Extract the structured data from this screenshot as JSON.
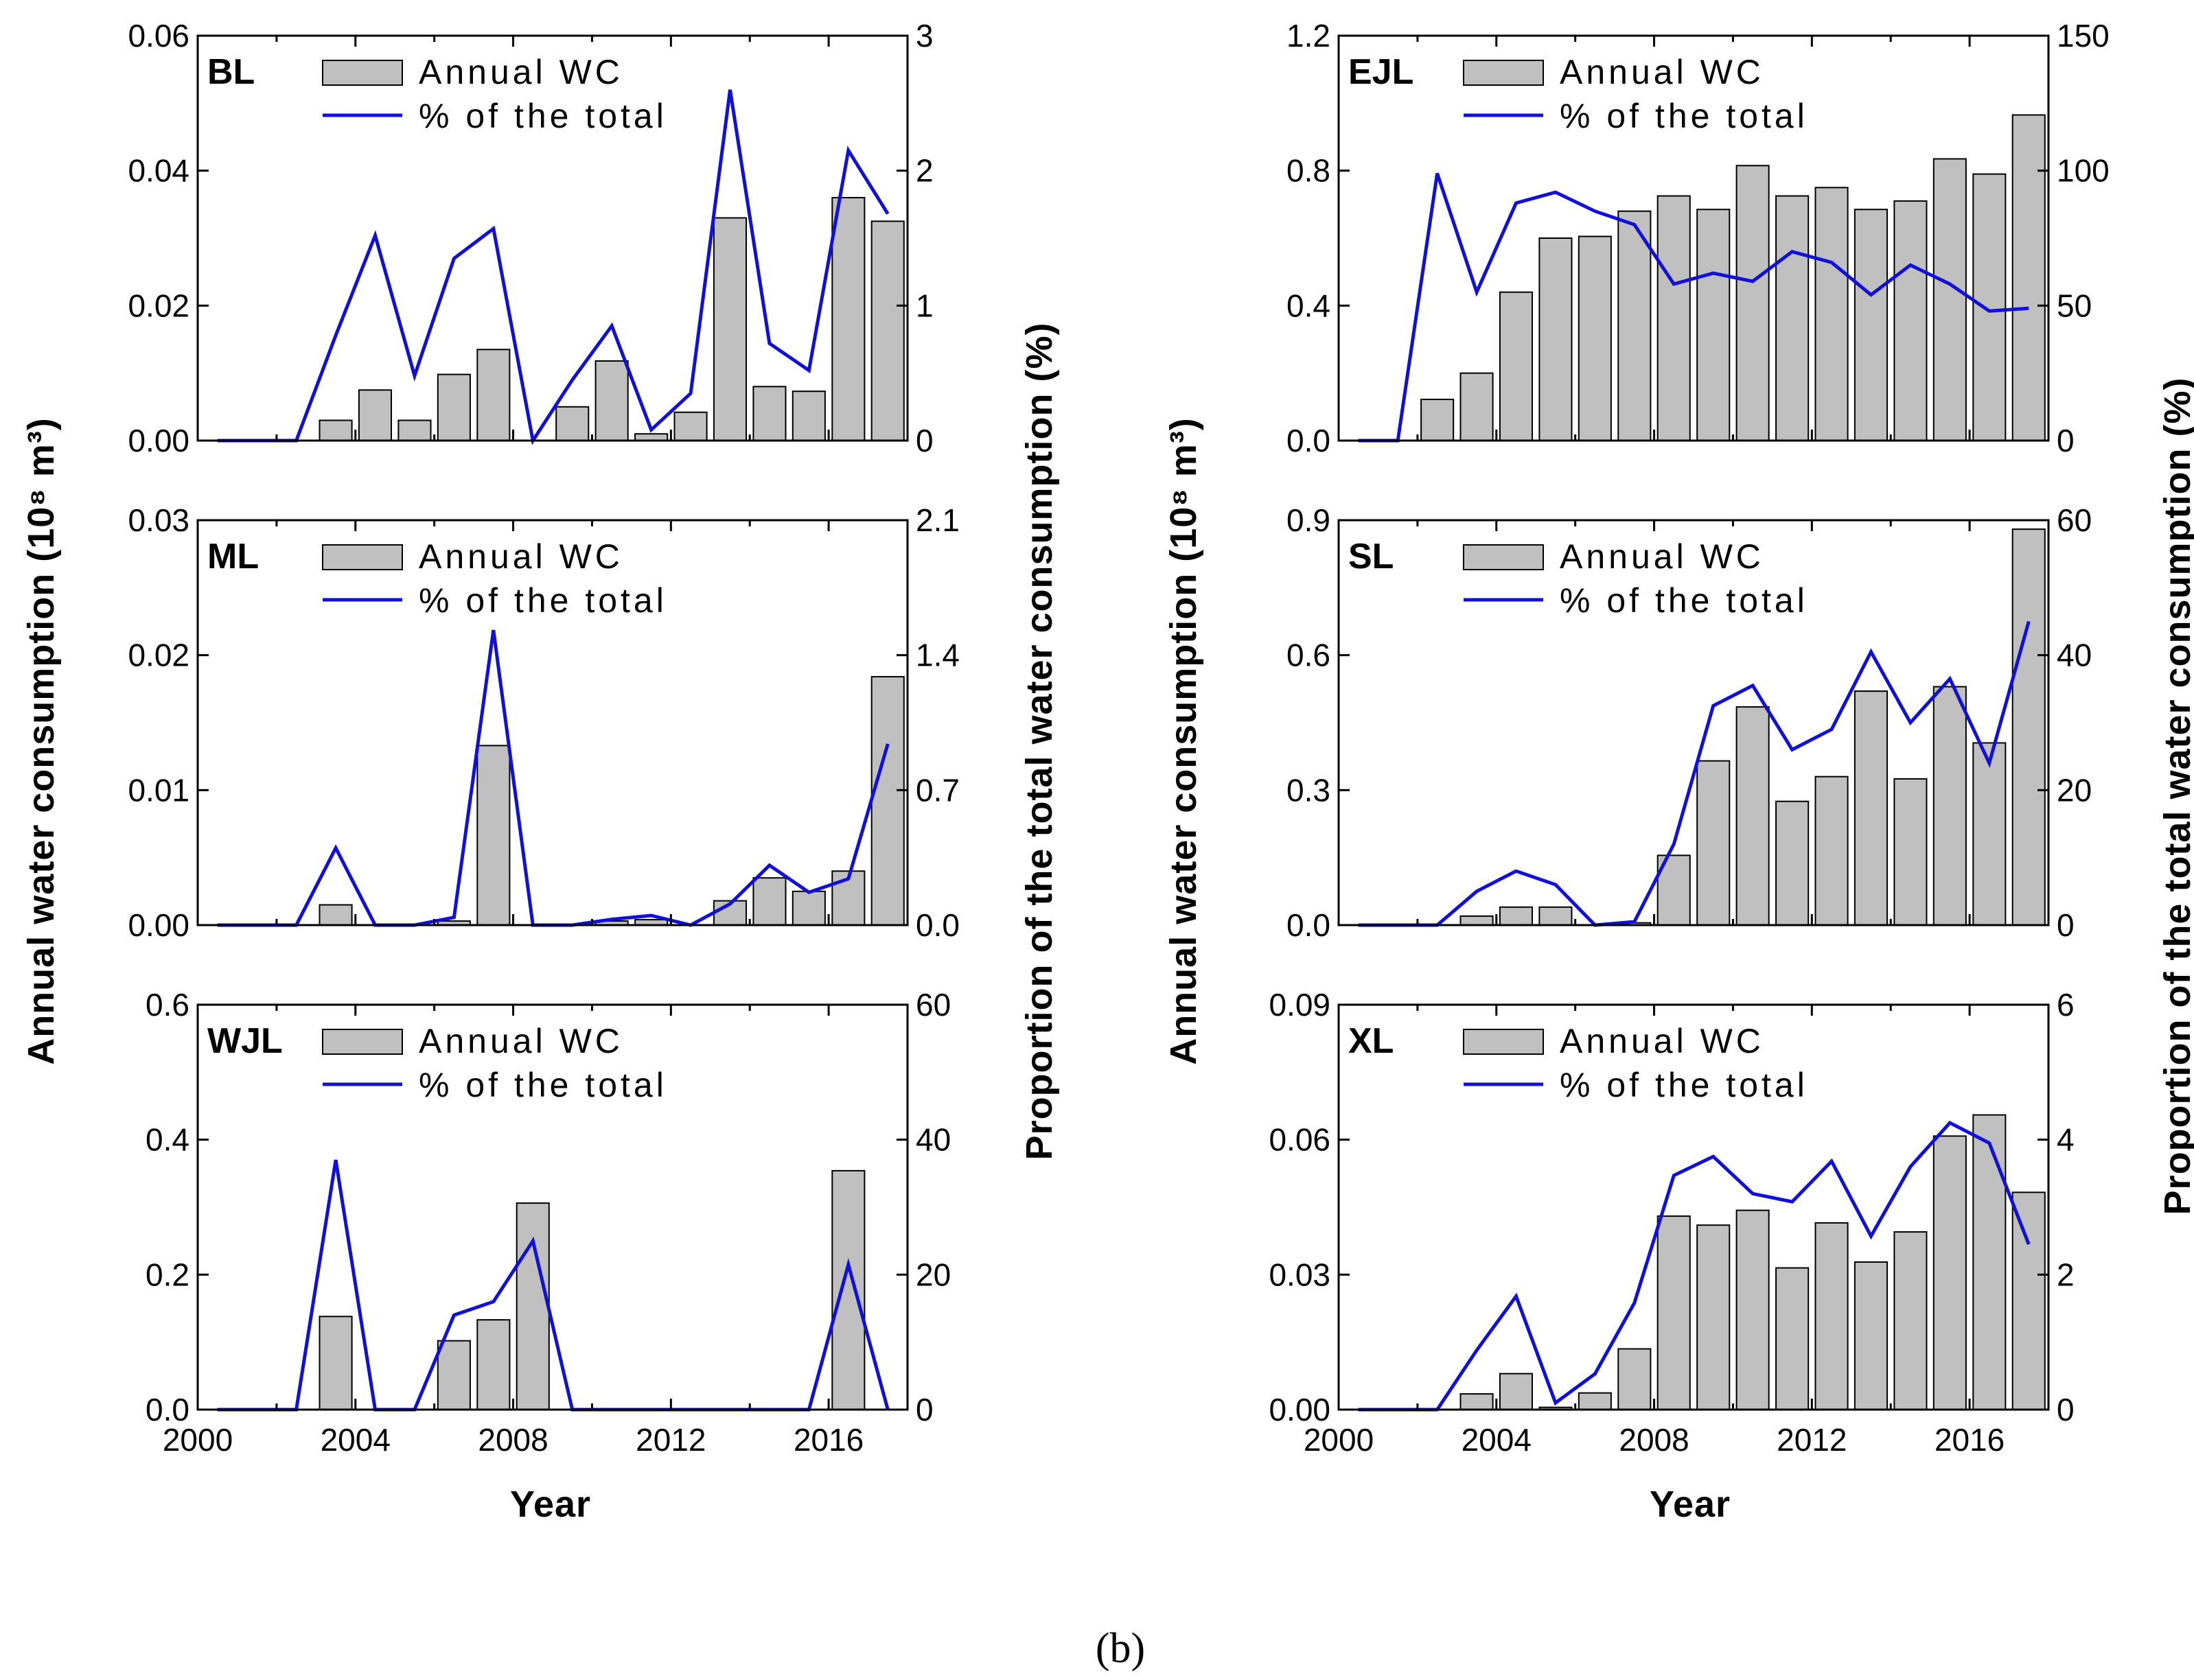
{
  "caption": "(b)",
  "legend": {
    "bar_label": "Annual WC",
    "line_label": "% of the total"
  },
  "colors": {
    "bar_fill": "#c0c0c0",
    "bar_stroke": "#000000",
    "line": "#1010d8",
    "axis": "#000000"
  },
  "axis_titles": {
    "left_y": "Annual water consumption (10⁸ m³)",
    "right_y": "Proportion of the total water consumption (%)",
    "left_x": "Year",
    "right_x": "Year"
  },
  "chart_data": [
    {
      "type": "bar+line",
      "title": "BL",
      "x": [
        2000,
        2001,
        2002,
        2003,
        2004,
        2005,
        2006,
        2007,
        2008,
        2009,
        2010,
        2011,
        2012,
        2013,
        2014,
        2015,
        2016,
        2017
      ],
      "xlim": [
        2000,
        2018
      ],
      "xticks": [
        "2000",
        "2004",
        "2008",
        "2012",
        "2016"
      ],
      "ylim": [
        0,
        0.06
      ],
      "yticks": [
        "0.00",
        "0.02",
        "0.04",
        "0.06"
      ],
      "y2lim": [
        0,
        3
      ],
      "y2ticks": [
        "0",
        "1",
        "2",
        "3"
      ],
      "bars": [
        0,
        0,
        0,
        0.003,
        0.0075,
        0.003,
        0.0098,
        0.0135,
        0,
        0.005,
        0.0118,
        0.001,
        0.0042,
        0.033,
        0.008,
        0.0073,
        0.036,
        0.0325
      ],
      "line": [
        0,
        0,
        0,
        0.78,
        1.52,
        0.48,
        1.35,
        1.57,
        0,
        0.45,
        0.85,
        0.08,
        0.35,
        2.6,
        0.72,
        0.52,
        2.15,
        1.68
      ]
    },
    {
      "type": "bar+line",
      "title": "ML",
      "x": [
        2000,
        2001,
        2002,
        2003,
        2004,
        2005,
        2006,
        2007,
        2008,
        2009,
        2010,
        2011,
        2012,
        2013,
        2014,
        2015,
        2016,
        2017
      ],
      "xlim": [
        2000,
        2018
      ],
      "xticks": [
        "2000",
        "2004",
        "2008",
        "2012",
        "2016"
      ],
      "ylim": [
        0,
        0.03
      ],
      "yticks": [
        "0.00",
        "0.01",
        "0.02",
        "0.03"
      ],
      "y2lim": [
        0,
        2.1
      ],
      "y2ticks": [
        "0.0",
        "0.7",
        "1.4",
        "2.1"
      ],
      "bars": [
        0,
        0,
        0,
        0.0015,
        0,
        0,
        0.0003,
        0.0133,
        0,
        0,
        0.0003,
        0.0004,
        0,
        0.0018,
        0.0035,
        0.0025,
        0.004,
        0.0184
      ],
      "line": [
        0,
        0,
        0,
        0.4,
        0,
        0,
        0.04,
        1.53,
        0,
        0,
        0.03,
        0.05,
        0,
        0.11,
        0.31,
        0.17,
        0.24,
        0.94
      ]
    },
    {
      "type": "bar+line",
      "title": "WJL",
      "x": [
        2000,
        2001,
        2002,
        2003,
        2004,
        2005,
        2006,
        2007,
        2008,
        2009,
        2010,
        2011,
        2012,
        2013,
        2014,
        2015,
        2016,
        2017
      ],
      "xlim": [
        2000,
        2018
      ],
      "xticks": [
        "2000",
        "2004",
        "2008",
        "2012",
        "2016"
      ],
      "ylim": [
        0,
        0.6
      ],
      "yticks": [
        "0.0",
        "0.2",
        "0.4",
        "0.6"
      ],
      "y2lim": [
        0,
        60
      ],
      "y2ticks": [
        "0",
        "20",
        "40",
        "60"
      ],
      "bars": [
        0,
        0,
        0,
        0.138,
        0,
        0,
        0.102,
        0.133,
        0.306,
        0,
        0,
        0,
        0,
        0,
        0,
        0,
        0.354,
        0
      ],
      "line": [
        0,
        0,
        0,
        37,
        0,
        0,
        14,
        16,
        25,
        0,
        0,
        0,
        0,
        0,
        0,
        0,
        21.5,
        0
      ]
    },
    {
      "type": "bar+line",
      "title": "EJL",
      "x": [
        2000,
        2001,
        2002,
        2003,
        2004,
        2005,
        2006,
        2007,
        2008,
        2009,
        2010,
        2011,
        2012,
        2013,
        2014,
        2015,
        2016,
        2017
      ],
      "xlim": [
        2000,
        2018
      ],
      "xticks": [
        "2000",
        "2004",
        "2008",
        "2012",
        "2016"
      ],
      "ylim": [
        0,
        1.2
      ],
      "yticks": [
        "0.0",
        "0.4",
        "0.8",
        "1.2"
      ],
      "y2lim": [
        0,
        150
      ],
      "y2ticks": [
        "0",
        "50",
        "100",
        "150"
      ],
      "bars": [
        0,
        0,
        0.122,
        0.2,
        0.44,
        0.6,
        0.605,
        0.68,
        0.725,
        0.685,
        0.815,
        0.725,
        0.75,
        0.685,
        0.71,
        0.835,
        0.79,
        0.965
      ],
      "line": [
        0,
        0,
        99,
        55,
        88,
        92,
        85,
        80,
        58,
        62,
        59,
        70,
        66,
        54,
        65,
        58,
        48,
        49
      ]
    },
    {
      "type": "bar+line",
      "title": "SL",
      "x": [
        2000,
        2001,
        2002,
        2003,
        2004,
        2005,
        2006,
        2007,
        2008,
        2009,
        2010,
        2011,
        2012,
        2013,
        2014,
        2015,
        2016,
        2017
      ],
      "xlim": [
        2000,
        2018
      ],
      "xticks": [
        "2000",
        "2004",
        "2008",
        "2012",
        "2016"
      ],
      "ylim": [
        0,
        0.9
      ],
      "yticks": [
        "0.0",
        "0.3",
        "0.6",
        "0.9"
      ],
      "y2lim": [
        0,
        60
      ],
      "y2ticks": [
        "0",
        "20",
        "40",
        "60"
      ],
      "bars": [
        0,
        0,
        0,
        0.02,
        0.04,
        0.04,
        0,
        0.005,
        0.155,
        0.365,
        0.485,
        0.275,
        0.33,
        0.52,
        0.325,
        0.53,
        0.405,
        0.88
      ],
      "line": [
        0,
        0,
        0,
        5,
        8,
        6,
        0,
        0.5,
        12,
        32.5,
        35.5,
        26,
        29,
        40.5,
        30,
        36.5,
        24,
        45
      ]
    },
    {
      "type": "bar+line",
      "title": "XL",
      "x": [
        2000,
        2001,
        2002,
        2003,
        2004,
        2005,
        2006,
        2007,
        2008,
        2009,
        2010,
        2011,
        2012,
        2013,
        2014,
        2015,
        2016,
        2017
      ],
      "xlim": [
        2000,
        2018
      ],
      "xticks": [
        "2000",
        "2004",
        "2008",
        "2012",
        "2016"
      ],
      "ylim": [
        0,
        0.09
      ],
      "yticks": [
        "0.00",
        "0.03",
        "0.06",
        "0.09"
      ],
      "y2lim": [
        0,
        6
      ],
      "y2ticks": [
        "0",
        "2",
        "4",
        "6"
      ],
      "bars": [
        0,
        0,
        0,
        0.0035,
        0.008,
        0.0005,
        0.0037,
        0.0135,
        0.043,
        0.041,
        0.0443,
        0.0315,
        0.0415,
        0.0328,
        0.0395,
        0.0608,
        0.0655,
        0.0483
      ],
      "line": [
        0,
        0,
        0,
        0.88,
        1.68,
        0.1,
        0.53,
        1.58,
        3.47,
        3.75,
        3.2,
        3.08,
        3.68,
        2.57,
        3.6,
        4.25,
        3.95,
        2.45
      ]
    }
  ]
}
